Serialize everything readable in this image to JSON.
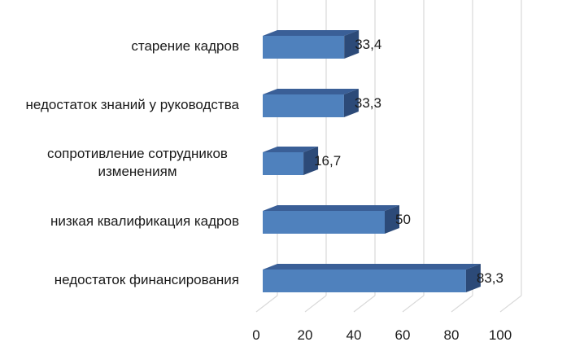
{
  "chart_data": {
    "type": "bar",
    "orientation": "horizontal",
    "style": "3d",
    "categories": [
      "старение кадров",
      "недостаток знаний у руководства",
      "сопротивление сотрудников изменениям",
      "низкая квалификация кадров",
      "недостаток финансирования"
    ],
    "category_lines": [
      [
        "старение кадров"
      ],
      [
        "недостаток знаний у руководства"
      ],
      [
        "сопротивление сотрудников",
        "изменениям"
      ],
      [
        "низкая квалификация кадров"
      ],
      [
        "недостаток финансирования"
      ]
    ],
    "values": [
      33.4,
      33.3,
      16.7,
      50,
      83.3
    ],
    "value_labels": [
      "33,4",
      "33,3",
      "16,7",
      "50",
      "83,3"
    ],
    "xlim": [
      0,
      100
    ],
    "xticks": [
      0,
      20,
      40,
      60,
      80,
      100
    ],
    "grid": true,
    "legend": "none",
    "colors": {
      "bar_front": "#4f81bd",
      "bar_top": "#3a5f97",
      "bar_side": "#2c4a78",
      "grid": "#d9d9d9"
    }
  }
}
